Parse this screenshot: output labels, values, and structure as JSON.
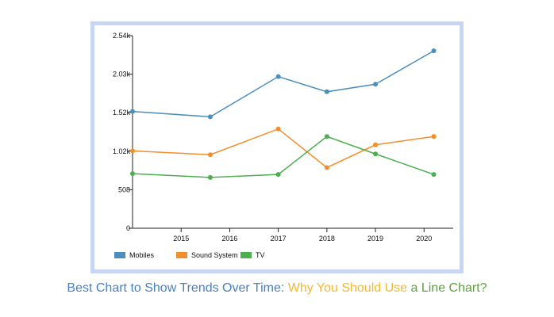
{
  "chart_data": {
    "type": "line",
    "x": [
      2014,
      2015.6,
      2017,
      2018,
      2019,
      2020.2
    ],
    "xticks": [
      "2015",
      "2016",
      "2017",
      "2018",
      "2019",
      "2020"
    ],
    "ytick_labels": [
      "0",
      "508",
      "1.02k",
      "1.52k",
      "2.03k",
      "2.54k"
    ],
    "ytick_values": [
      0,
      508,
      1016,
      1524,
      2032,
      2540
    ],
    "ylim": [
      0,
      2540
    ],
    "xlim": [
      2014,
      2020.6
    ],
    "grid": false,
    "legend_position": "bottom-left",
    "series": [
      {
        "name": "Mobiles",
        "color": "#4c8fbe",
        "values": [
          1540,
          1470,
          2000,
          1800,
          1900,
          2340
        ]
      },
      {
        "name": "Sound System",
        "color": "#f28e2b",
        "values": [
          1020,
          970,
          1310,
          800,
          1100,
          1210
        ]
      },
      {
        "name": "TV",
        "color": "#4caf50",
        "values": [
          720,
          670,
          710,
          1210,
          980,
          710
        ]
      }
    ]
  },
  "caption": {
    "part1": "Best Chart to Show Trends Over Time: ",
    "part2": "Why You Should Use",
    "part3": " a Line Chart?",
    "color1": "#4a7fc1",
    "color2": "#f5b933",
    "color3": "#5fa044"
  }
}
